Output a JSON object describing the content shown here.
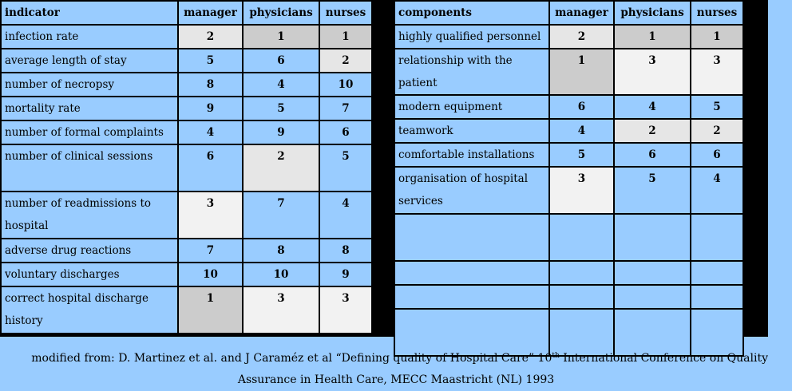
{
  "left_table": {
    "headers": [
      "indicator",
      "manager",
      "physicians",
      "nurses"
    ],
    "rows": [
      {
        "label": "infection rate",
        "values": [
          "2",
          "1",
          "1"
        ],
        "shades": [
          "g2",
          "g1",
          "g1"
        ]
      },
      {
        "label": "average length of stay",
        "values": [
          "5",
          "6",
          "2"
        ],
        "shades": [
          "",
          "",
          "g2"
        ]
      },
      {
        "label": "number of necropsy",
        "values": [
          "8",
          "4",
          "10"
        ],
        "shades": [
          "",
          "",
          ""
        ]
      },
      {
        "label": "mortality rate",
        "values": [
          "9",
          "5",
          "7"
        ],
        "shades": [
          "",
          "",
          ""
        ]
      },
      {
        "label": "number of formal complaints",
        "values": [
          "4",
          "9",
          "6"
        ],
        "shades": [
          "",
          "",
          ""
        ]
      },
      {
        "label": "number of clinical sessions",
        "values": [
          "6",
          "2",
          "5"
        ],
        "shades": [
          "",
          "g2",
          ""
        ]
      },
      {
        "label": "number of readmissions to hospital",
        "values": [
          "3",
          "7",
          "4"
        ],
        "shades": [
          "g3",
          "",
          ""
        ]
      },
      {
        "label": "adverse drug reactions",
        "values": [
          "7",
          "8",
          "8"
        ],
        "shades": [
          "",
          "",
          ""
        ]
      },
      {
        "label": "voluntary discharges",
        "values": [
          "10",
          "10",
          "9"
        ],
        "shades": [
          "",
          "",
          ""
        ]
      },
      {
        "label": "correct hospital discharge history",
        "values": [
          "1",
          "3",
          "3"
        ],
        "shades": [
          "g1",
          "g3",
          "g3"
        ]
      }
    ]
  },
  "right_table": {
    "headers": [
      "components",
      "manager",
      "physicians",
      "nurses"
    ],
    "rows": [
      {
        "label": "highly qualified personnel",
        "values": [
          "2",
          "1",
          "1"
        ],
        "shades": [
          "g2",
          "g1",
          "g1"
        ]
      },
      {
        "label": "relationship with the patient",
        "values": [
          "1",
          "3",
          "3"
        ],
        "shades": [
          "g1",
          "g3",
          "g3"
        ]
      },
      {
        "label": "modern equipment",
        "values": [
          "6",
          "4",
          "5"
        ],
        "shades": [
          "",
          "",
          ""
        ]
      },
      {
        "label": "teamwork",
        "values": [
          "4",
          "2",
          "2"
        ],
        "shades": [
          "",
          "g2",
          "g2"
        ]
      },
      {
        "label": "comfortable installations",
        "values": [
          "5",
          "6",
          "6"
        ],
        "shades": [
          "",
          "",
          ""
        ]
      },
      {
        "label": "organisation of hospital services",
        "values": [
          "3",
          "5",
          "4"
        ],
        "shades": [
          "g3",
          "",
          ""
        ]
      },
      {
        "label": "",
        "values": [
          "",
          "",
          ""
        ],
        "shades": [
          "",
          "",
          ""
        ]
      },
      {
        "label": "",
        "values": [
          "",
          "",
          ""
        ],
        "shades": [
          "",
          "",
          ""
        ]
      },
      {
        "label": "",
        "values": [
          "",
          "",
          ""
        ],
        "shades": [
          "",
          "",
          ""
        ]
      },
      {
        "label": "",
        "values": [
          "",
          "",
          ""
        ],
        "shades": [
          "",
          "",
          ""
        ]
      }
    ]
  },
  "caption": {
    "line1_a": "modified from: D. Martinez et al. and J Caraméz et al “Defining quality of Hospital Care” 10",
    "line1_sup": "th",
    "line1_b": " International Conference on Quality",
    "line2": "Assurance in Health Care, MECC Maastricht (NL) 1993"
  },
  "colors": {
    "background": "#99ccff",
    "shade_dark": "#cccccc",
    "shade_mid": "#e6e6e6",
    "shade_light": "#f2f2f2"
  }
}
